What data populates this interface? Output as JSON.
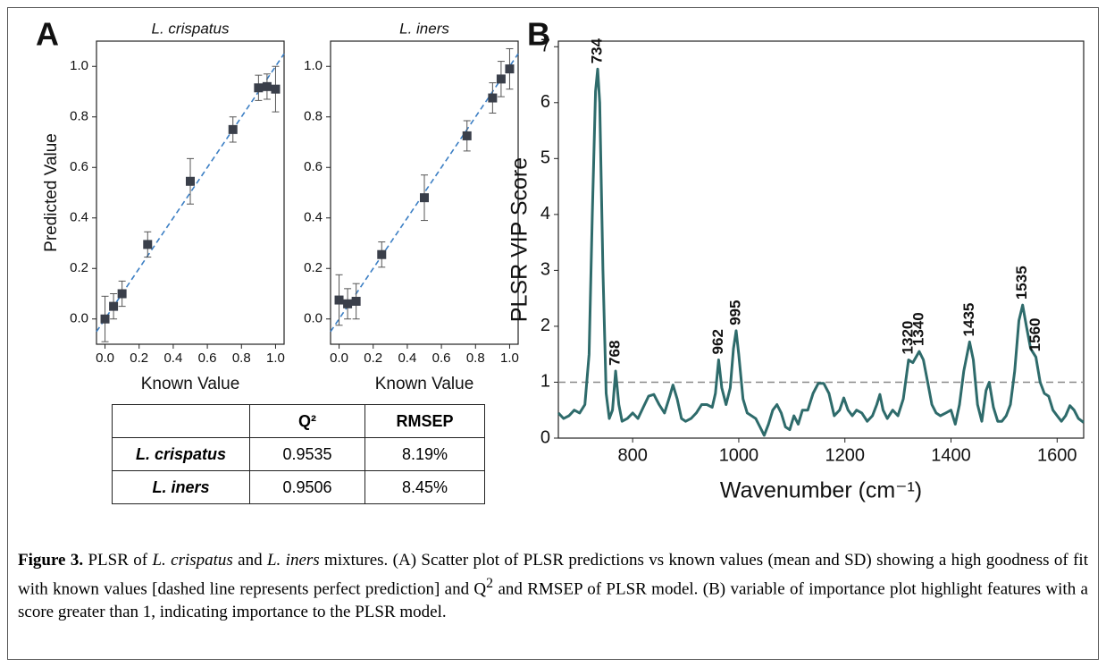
{
  "chart_data": [
    {
      "type": "scatter",
      "panel_label": "A",
      "title": "L. crispatus",
      "x_label": "Known Value",
      "y_label": "Predicted Value",
      "xlim": [
        -0.05,
        1.05
      ],
      "ylim": [
        -0.1,
        1.1
      ],
      "xticks": [
        {
          "value": 0,
          "label": "0.0"
        },
        0.2,
        0.4,
        0.6,
        0.8,
        {
          "value": 1,
          "label": "1.0"
        }
      ],
      "yticks": [
        {
          "value": 0,
          "label": "0.0"
        },
        0.2,
        0.4,
        0.6,
        0.8,
        {
          "value": 1,
          "label": "1.0"
        }
      ],
      "identity_line": true,
      "line_color": "#3c7fc4",
      "color": "#3a3f4a",
      "x": [
        0,
        0.05,
        0.1,
        0.25,
        0.5,
        0.75,
        0.9,
        0.95,
        1.0
      ],
      "values": [
        0.0,
        0.05,
        0.1,
        0.295,
        0.545,
        0.75,
        0.915,
        0.92,
        0.91
      ],
      "errors": [
        0.09,
        0.05,
        0.05,
        0.05,
        0.09,
        0.05,
        0.05,
        0.05,
        0.09
      ]
    },
    {
      "type": "scatter",
      "title": "L. iners",
      "x_label": "Known Value",
      "xlim": [
        -0.05,
        1.05
      ],
      "ylim": [
        -0.1,
        1.1
      ],
      "xticks": [
        {
          "value": 0,
          "label": "0.0"
        },
        0.2,
        0.4,
        0.6,
        0.8,
        {
          "value": 1,
          "label": "1.0"
        }
      ],
      "yticks": [
        {
          "value": 0,
          "label": "0.0"
        },
        0.2,
        0.4,
        0.6,
        0.8,
        {
          "value": 1,
          "label": "1.0"
        }
      ],
      "identity_line": true,
      "line_color": "#3c7fc4",
      "color": "#3a3f4a",
      "x": [
        0,
        0.05,
        0.1,
        0.25,
        0.5,
        0.75,
        0.9,
        0.95,
        1.0
      ],
      "values": [
        0.075,
        0.06,
        0.07,
        0.255,
        0.48,
        0.725,
        0.875,
        0.95,
        0.99
      ],
      "errors": [
        0.1,
        0.06,
        0.07,
        0.05,
        0.09,
        0.06,
        0.06,
        0.07,
        0.08
      ]
    },
    {
      "type": "line",
      "panel_label": "B",
      "x_label": "Wavenumber (cm⁻¹)",
      "y_label": "PLSR VIP Score",
      "xlim": [
        660,
        1650
      ],
      "ylim": [
        0,
        7.1
      ],
      "xticks": [
        800,
        1000,
        1200,
        1400,
        1600
      ],
      "yticks": [
        0,
        1,
        2,
        3,
        4,
        5,
        6,
        7
      ],
      "color": "#2e6b6b",
      "hline": 1,
      "x": [
        660,
        670,
        680,
        690,
        700,
        710,
        718,
        724,
        730,
        734,
        738,
        744,
        750,
        756,
        762,
        768,
        774,
        780,
        790,
        800,
        810,
        820,
        830,
        840,
        850,
        860,
        870,
        876,
        884,
        892,
        900,
        910,
        920,
        930,
        940,
        950,
        956,
        962,
        968,
        976,
        984,
        990,
        995,
        1000,
        1008,
        1016,
        1024,
        1032,
        1040,
        1048,
        1056,
        1064,
        1072,
        1080,
        1088,
        1096,
        1104,
        1112,
        1120,
        1130,
        1140,
        1150,
        1160,
        1170,
        1180,
        1190,
        1198,
        1206,
        1214,
        1222,
        1232,
        1242,
        1252,
        1260,
        1266,
        1272,
        1280,
        1290,
        1300,
        1310,
        1320,
        1328,
        1340,
        1348,
        1356,
        1364,
        1372,
        1380,
        1390,
        1400,
        1408,
        1416,
        1424,
        1435,
        1442,
        1450,
        1458,
        1466,
        1472,
        1480,
        1488,
        1496,
        1504,
        1512,
        1520,
        1528,
        1535,
        1542,
        1550,
        1560,
        1568,
        1576,
        1584,
        1592,
        1600,
        1608,
        1616,
        1624,
        1632,
        1640,
        1650
      ],
      "values": [
        0.45,
        0.35,
        0.4,
        0.5,
        0.45,
        0.6,
        1.5,
        4.0,
        6.2,
        6.6,
        6.0,
        3.0,
        0.8,
        0.35,
        0.5,
        1.2,
        0.6,
        0.3,
        0.35,
        0.45,
        0.35,
        0.55,
        0.75,
        0.78,
        0.6,
        0.45,
        0.75,
        0.95,
        0.7,
        0.35,
        0.3,
        0.35,
        0.45,
        0.6,
        0.6,
        0.55,
        0.8,
        1.4,
        0.9,
        0.6,
        0.9,
        1.6,
        1.92,
        1.5,
        0.7,
        0.45,
        0.4,
        0.35,
        0.2,
        0.05,
        0.25,
        0.5,
        0.6,
        0.45,
        0.2,
        0.15,
        0.4,
        0.25,
        0.5,
        0.5,
        0.8,
        0.98,
        0.98,
        0.8,
        0.4,
        0.5,
        0.72,
        0.5,
        0.4,
        0.5,
        0.45,
        0.3,
        0.4,
        0.6,
        0.78,
        0.5,
        0.35,
        0.5,
        0.4,
        0.7,
        1.4,
        1.35,
        1.55,
        1.4,
        1.0,
        0.6,
        0.45,
        0.4,
        0.45,
        0.5,
        0.25,
        0.6,
        1.2,
        1.72,
        1.4,
        0.6,
        0.3,
        0.85,
        1.0,
        0.55,
        0.3,
        0.3,
        0.4,
        0.6,
        1.2,
        2.1,
        2.38,
        2.0,
        1.6,
        1.45,
        1.0,
        0.8,
        0.75,
        0.5,
        0.4,
        0.3,
        0.4,
        0.58,
        0.5,
        0.35,
        0.28
      ],
      "annotations": [
        {
          "text": "734",
          "x": 734,
          "y": 6.6
        },
        {
          "text": "768",
          "x": 768,
          "y": 1.2
        },
        {
          "text": "962",
          "x": 962,
          "y": 1.4
        },
        {
          "text": "995",
          "x": 995,
          "y": 1.92
        },
        {
          "text": "1320",
          "x": 1320,
          "y": 1.4
        },
        {
          "text": "1340",
          "x": 1340,
          "y": 1.55
        },
        {
          "text": "1435",
          "x": 1435,
          "y": 1.72
        },
        {
          "text": "1535",
          "x": 1535,
          "y": 2.38
        },
        {
          "text": "1560",
          "x": 1560,
          "y": 1.45
        }
      ]
    }
  ],
  "table": {
    "header": [
      "Q²",
      "RMSEP"
    ],
    "rows": [
      [
        "L. crispatus",
        "0.9535",
        "8.19%"
      ],
      [
        "L. iners",
        "0.9506",
        "8.45%"
      ]
    ]
  },
  "caption": {
    "label": "Figure 3.",
    "segments": [
      "PLSR of ",
      "L. crispatus",
      " and ",
      "L. iners",
      " mixtures. (A) Scatter plot of PLSR predictions vs known values (mean and SD) showing a high goodness of fit with known values [dashed line represents perfect prediction] and Q",
      "2",
      " and RMSEP of PLSR model. (B) variable of importance plot highlight features with a score greater than 1, indicating importance to the PLSR model."
    ]
  }
}
